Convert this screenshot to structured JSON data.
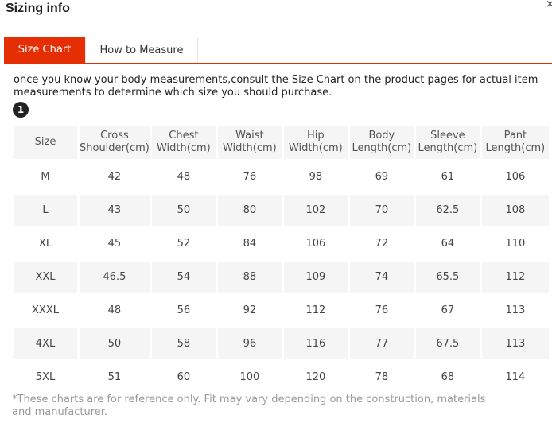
{
  "dialog": {
    "title": "Sizing info",
    "close_glyph": "×"
  },
  "tabs": [
    {
      "label": "Size Chart",
      "active": true
    },
    {
      "label": "How to Measure",
      "active": false
    }
  ],
  "accent_color": "#e62e04",
  "intro_text": "once you know your body measurements,consult the Size Chart on the product pages for actual item measurements to determine which size you should purchase.",
  "step_badge": "1",
  "table": {
    "headers": [
      [
        "Size"
      ],
      [
        "Cross",
        "Shoulder(cm)"
      ],
      [
        "Chest",
        "Width(cm)"
      ],
      [
        "Waist",
        "Width(cm)"
      ],
      [
        "Hip",
        "Width(cm)"
      ],
      [
        "Body",
        "Length(cm)"
      ],
      [
        "Sleeve",
        "Length(cm)"
      ],
      [
        "Pant",
        "Length(cm)"
      ]
    ],
    "rows": [
      [
        "M",
        "42",
        "48",
        "76",
        "98",
        "69",
        "61",
        "106"
      ],
      [
        "L",
        "43",
        "50",
        "80",
        "102",
        "70",
        "62.5",
        "108"
      ],
      [
        "XL",
        "45",
        "52",
        "84",
        "106",
        "72",
        "64",
        "110"
      ],
      [
        "XXL",
        "46.5",
        "54",
        "88",
        "109",
        "74",
        "65.5",
        "112"
      ],
      [
        "XXXL",
        "48",
        "56",
        "92",
        "112",
        "76",
        "67",
        "113"
      ],
      [
        "4XL",
        "50",
        "58",
        "96",
        "116",
        "77",
        "67.5",
        "113"
      ],
      [
        "5XL",
        "51",
        "60",
        "100",
        "120",
        "78",
        "68",
        "114"
      ]
    ]
  },
  "footnote": "*These charts are for reference only. Fit may vary depending on the construction, materials and manufacturer."
}
